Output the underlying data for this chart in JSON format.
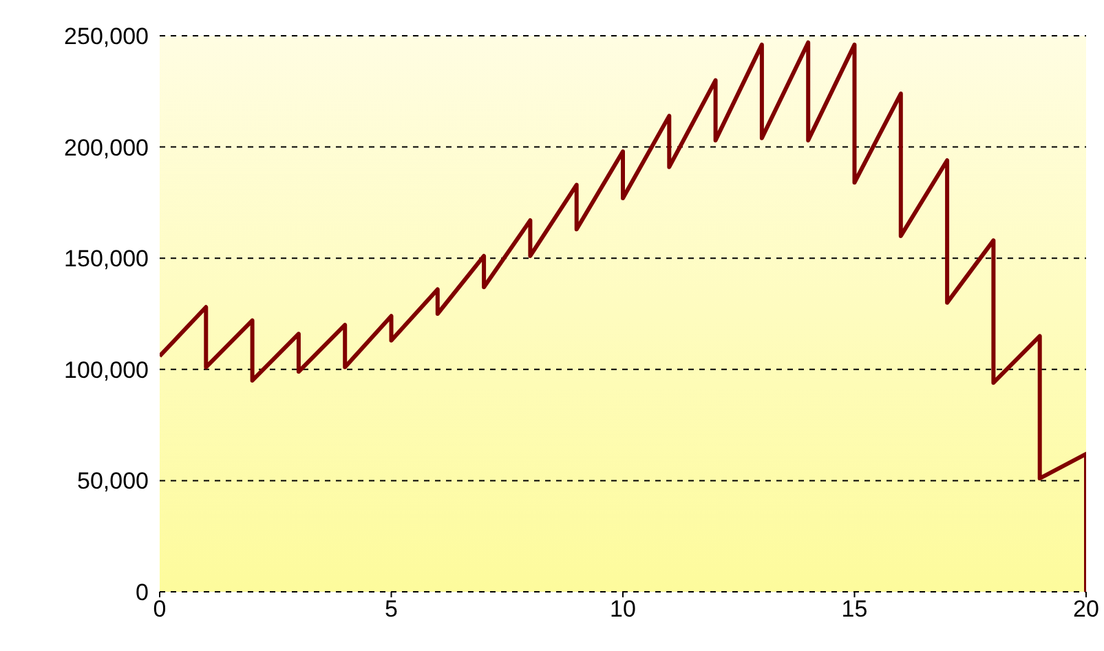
{
  "chart_data": {
    "type": "line",
    "x": [
      0,
      1,
      1,
      2,
      2,
      3,
      3,
      4,
      4,
      5,
      5,
      6,
      6,
      7,
      7,
      8,
      8,
      9,
      9,
      10,
      10,
      11,
      11,
      12,
      12,
      13,
      13,
      14,
      14,
      15,
      15,
      16,
      16,
      17,
      17,
      18,
      18,
      19,
      19,
      20,
      20
    ],
    "series": [
      {
        "color": "#800000",
        "values": [
          106000,
          128000,
          101000,
          122000,
          95000,
          116000,
          99000,
          120000,
          101000,
          124000,
          113000,
          136000,
          125000,
          151000,
          137000,
          167000,
          151000,
          183000,
          163000,
          198000,
          177000,
          214000,
          191000,
          230000,
          203000,
          246000,
          204000,
          247000,
          203000,
          246000,
          184000,
          224000,
          160000,
          194000,
          130000,
          158000,
          94000,
          115000,
          51000,
          62000,
          0
        ]
      }
    ],
    "xlim": [
      0,
      20
    ],
    "xticks": [
      0,
      5,
      10,
      15,
      20
    ],
    "ylim": [
      0,
      250000
    ],
    "yticks": [
      0,
      {
        "value": 50000,
        "label": "50,000"
      },
      {
        "value": 100000,
        "label": "100,000"
      },
      {
        "value": 150000,
        "label": "150,000"
      },
      {
        "value": 200000,
        "label": "200,000"
      },
      {
        "value": 250000,
        "label": "250,000"
      }
    ],
    "grid": "y",
    "marker": "none",
    "line_style": "solid"
  }
}
